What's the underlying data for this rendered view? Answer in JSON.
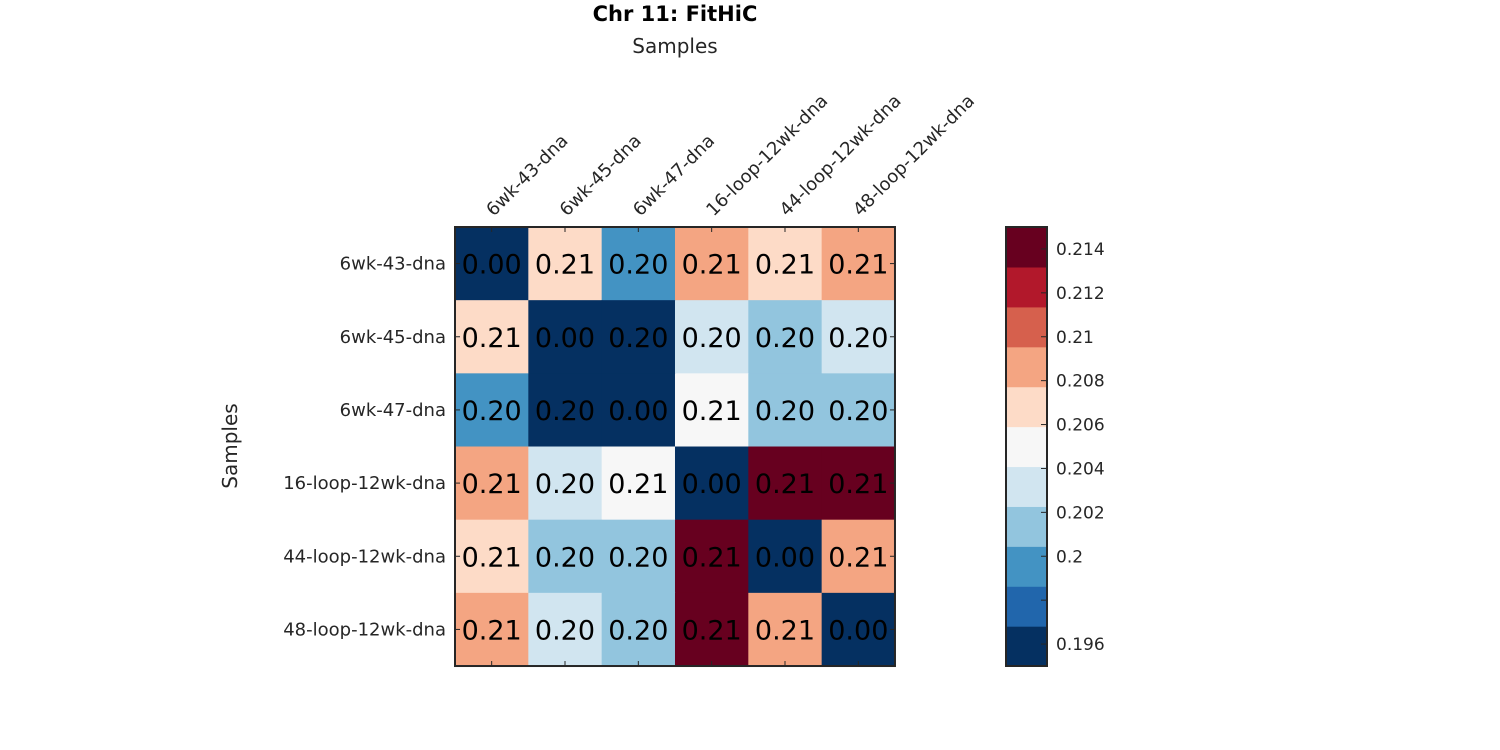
{
  "chart_data": {
    "type": "heatmap",
    "title": "Chr 11: FitHiC",
    "xlabel": "Samples",
    "ylabel": "Samples",
    "x_categories": [
      "6wk-43-dna",
      "6wk-45-dna",
      "6wk-47-dna",
      "16-loop-12wk-dna",
      "44-loop-12wk-dna",
      "48-loop-12wk-dna"
    ],
    "y_categories": [
      "6wk-43-dna",
      "6wk-45-dna",
      "6wk-47-dna",
      "16-loop-12wk-dna",
      "44-loop-12wk-dna",
      "48-loop-12wk-dna"
    ],
    "values": [
      [
        0.0,
        0.206,
        0.2,
        0.208,
        0.206,
        0.208
      ],
      [
        0.206,
        0.0,
        0.196,
        0.204,
        0.202,
        0.203
      ],
      [
        0.2,
        0.196,
        0.0,
        0.205,
        0.202,
        0.202
      ],
      [
        0.208,
        0.204,
        0.205,
        0.0,
        0.215,
        0.215
      ],
      [
        0.206,
        0.202,
        0.202,
        0.215,
        0.0,
        0.208
      ],
      [
        0.208,
        0.203,
        0.202,
        0.215,
        0.208,
        0.0
      ]
    ],
    "cell_labels": [
      [
        "0.00",
        "0.21",
        "0.20",
        "0.21",
        "0.21",
        "0.21"
      ],
      [
        "0.21",
        "0.00",
        "0.20",
        "0.20",
        "0.20",
        "0.20"
      ],
      [
        "0.20",
        "0.20",
        "0.00",
        "0.21",
        "0.20",
        "0.20"
      ],
      [
        "0.21",
        "0.20",
        "0.21",
        "0.00",
        "0.21",
        "0.21"
      ],
      [
        "0.21",
        "0.20",
        "0.20",
        "0.21",
        "0.00",
        "0.21"
      ],
      [
        "0.21",
        "0.20",
        "0.20",
        "0.21",
        "0.21",
        "0.00"
      ]
    ],
    "colorbar": {
      "range": [
        0.195,
        0.215
      ],
      "ticks": [
        0.196,
        0.198,
        0.2,
        0.202,
        0.204,
        0.206,
        0.208,
        0.21,
        0.212,
        0.214
      ],
      "tick_labels": [
        "0.196",
        "",
        "0.2",
        "0.202",
        "0.204",
        "0.206",
        "0.208",
        "0.21",
        "0.212",
        "0.214"
      ],
      "colors": [
        "#053061",
        "#2166ac",
        "#4393c3",
        "#92c5de",
        "#d1e5f0",
        "#f7f7f7",
        "#fddbc7",
        "#f4a582",
        "#d6604d",
        "#b2182b",
        "#67001f"
      ]
    },
    "legend_position": "right"
  }
}
